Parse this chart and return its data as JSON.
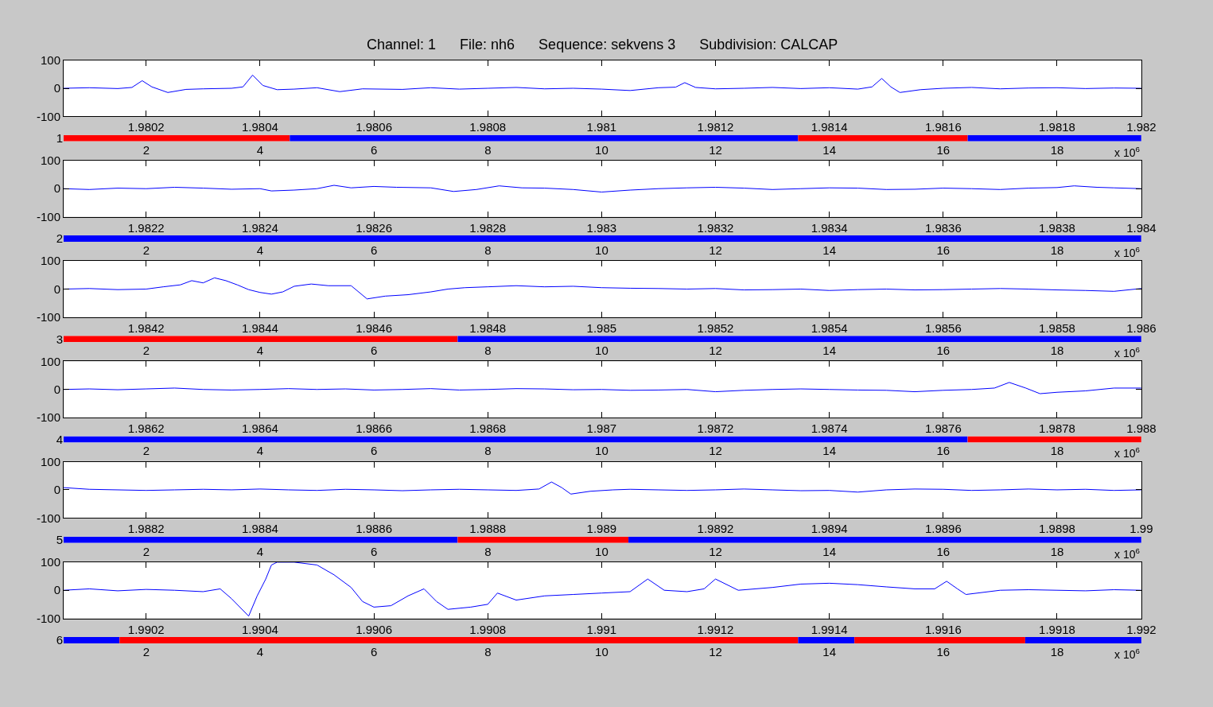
{
  "chart_data": [
    {
      "type": "line",
      "title": "Channel: 1      File: nh6      Sequence: sekvens 3      Subdivision: CALCAP",
      "xlim": [
        1.980055,
        1.981948
      ],
      "xticks": [
        1.9802,
        1.9804,
        1.9806,
        1.9808,
        1.981,
        1.9812,
        1.9814,
        1.9816,
        1.9818,
        {
          "value": 1.981948,
          "label": "1.982"
        }
      ],
      "ylim": [
        -100,
        100
      ],
      "yticks": [
        -100,
        0,
        100
      ],
      "grid": false,
      "series": [
        {
          "color": "#0000ff",
          "x": [
            1.980055,
            1.9801,
            1.98015,
            1.980175,
            1.980193,
            1.98021,
            1.980238,
            1.98027,
            1.9803,
            1.98035,
            1.98037,
            1.980387,
            1.980405,
            1.98043,
            1.98046,
            1.9805,
            1.98054,
            1.98058,
            1.98065,
            1.9807,
            1.98075,
            1.9808,
            1.98085,
            1.9809,
            1.98095,
            1.981,
            1.98105,
            1.9811,
            1.98113,
            1.981146,
            1.981165,
            1.9812,
            1.98125,
            1.9813,
            1.98135,
            1.9814,
            1.98145,
            1.981475,
            1.981492,
            1.981508,
            1.981524,
            1.98156,
            1.9816,
            1.98165,
            1.9817,
            1.98175,
            1.9818,
            1.98185,
            1.9819,
            1.981948
          ],
          "values": [
            0,
            2,
            -1,
            3,
            27,
            5,
            -15,
            -4,
            -2,
            0,
            5,
            47,
            10,
            -5,
            -3,
            2,
            -12,
            -2,
            -4,
            2,
            -3,
            0,
            3,
            -2,
            0,
            -3,
            -8,
            2,
            4,
            20,
            3,
            -2,
            0,
            3,
            -1,
            2,
            -3,
            5,
            35,
            5,
            -15,
            -5,
            0,
            3,
            -2,
            1,
            2,
            -1,
            1,
            0
          ]
        }
      ]
    },
    {
      "type": "bar",
      "orientation": "horizontal",
      "categories": [
        "1"
      ],
      "xlim": [
        0.548,
        19.48
      ],
      "xticks": [
        2,
        4,
        6,
        8,
        10,
        12,
        14,
        16,
        18
      ],
      "annotations": [
        "x 10$^{6}$"
      ],
      "series": [
        {
          "color": "#ff0000",
          "base": [
            0.548
          ],
          "values": [
            3.97
          ]
        },
        {
          "color": "#0000ff",
          "base": [
            4.52
          ],
          "values": [
            8.93
          ]
        },
        {
          "color": "#ff0000",
          "base": [
            13.45
          ],
          "values": [
            2.98
          ]
        },
        {
          "color": "#0000ff",
          "base": [
            16.43
          ],
          "values": [
            3.05
          ]
        }
      ]
    },
    {
      "type": "line",
      "xlim": [
        1.982055,
        1.983948
      ],
      "xticks": [
        1.9822,
        1.9824,
        1.9826,
        1.9828,
        1.983,
        1.9832,
        1.9834,
        1.9836,
        1.9838,
        {
          "value": 1.983948,
          "label": "1.984"
        }
      ],
      "ylim": [
        -100,
        100
      ],
      "yticks": [
        -100,
        0,
        100
      ],
      "grid": false,
      "series": [
        {
          "color": "#0000ff",
          "x": [
            1.982055,
            1.9821,
            1.98215,
            1.9822,
            1.98225,
            1.9823,
            1.98235,
            1.9824,
            1.98242,
            1.98246,
            1.9825,
            1.98253,
            1.98256,
            1.9826,
            1.98264,
            1.9827,
            1.98274,
            1.98278,
            1.98282,
            1.98286,
            1.9829,
            1.98295,
            1.983,
            1.98305,
            1.9831,
            1.98315,
            1.9832,
            1.98325,
            1.9833,
            1.98335,
            1.9834,
            1.98345,
            1.9835,
            1.98355,
            1.9836,
            1.98365,
            1.9837,
            1.98375,
            1.9838,
            1.98383,
            1.98387,
            1.9839,
            1.983948
          ],
          "values": [
            0,
            -3,
            2,
            0,
            5,
            2,
            -2,
            0,
            -8,
            -5,
            0,
            12,
            3,
            8,
            5,
            3,
            -10,
            -3,
            10,
            3,
            2,
            -3,
            -12,
            -5,
            0,
            3,
            5,
            2,
            -3,
            0,
            3,
            2,
            -3,
            -2,
            2,
            0,
            -3,
            2,
            4,
            10,
            5,
            3,
            0
          ]
        }
      ]
    },
    {
      "type": "bar",
      "orientation": "horizontal",
      "categories": [
        "2"
      ],
      "xlim": [
        0.548,
        19.48
      ],
      "xticks": [
        2,
        4,
        6,
        8,
        10,
        12,
        14,
        16,
        18
      ],
      "annotations": [
        "x 10$^{6}$"
      ],
      "series": [
        {
          "color": "#0000ff",
          "base": [
            0.548
          ],
          "values": [
            18.93
          ]
        }
      ]
    },
    {
      "type": "line",
      "xlim": [
        1.984055,
        1.985948
      ],
      "xticks": [
        1.9842,
        1.9844,
        1.9846,
        1.9848,
        1.985,
        1.9852,
        1.9854,
        1.9856,
        1.9858,
        {
          "value": 1.985948,
          "label": "1.986"
        }
      ],
      "ylim": [
        -100,
        100
      ],
      "yticks": [
        -100,
        0,
        100
      ],
      "grid": false,
      "series": [
        {
          "color": "#0000ff",
          "x": [
            1.984055,
            1.9841,
            1.98415,
            1.9842,
            1.98423,
            1.98426,
            1.98428,
            1.9843,
            1.98432,
            1.98434,
            1.98436,
            1.98438,
            1.9844,
            1.98442,
            1.98444,
            1.98446,
            1.98449,
            1.98452,
            1.98456,
            1.984588,
            1.98462,
            1.98466,
            1.9847,
            1.98473,
            1.98476,
            1.9848,
            1.98485,
            1.9849,
            1.98495,
            1.985,
            1.98505,
            1.9851,
            1.98515,
            1.9852,
            1.98525,
            1.9853,
            1.98535,
            1.9854,
            1.98545,
            1.9855,
            1.98555,
            1.9856,
            1.98565,
            1.9857,
            1.98575,
            1.9858,
            1.98585,
            1.9859,
            1.985948
          ],
          "values": [
            0,
            2,
            -2,
            0,
            8,
            15,
            30,
            22,
            40,
            30,
            15,
            -2,
            -12,
            -18,
            -10,
            10,
            18,
            12,
            12,
            -35,
            -25,
            -20,
            -10,
            0,
            5,
            8,
            12,
            8,
            10,
            5,
            3,
            2,
            0,
            2,
            -3,
            -2,
            0,
            -5,
            -2,
            0,
            -3,
            -2,
            0,
            2,
            0,
            -3,
            -5,
            -8,
            2
          ]
        }
      ]
    },
    {
      "type": "bar",
      "orientation": "horizontal",
      "categories": [
        "3"
      ],
      "xlim": [
        0.548,
        19.48
      ],
      "xticks": [
        2,
        4,
        6,
        8,
        10,
        12,
        14,
        16,
        18
      ],
      "annotations": [
        "x 10$^{6}$"
      ],
      "series": [
        {
          "color": "#ff0000",
          "base": [
            0.548
          ],
          "values": [
            6.92
          ]
        },
        {
          "color": "#0000ff",
          "base": [
            7.47
          ],
          "values": [
            12.01
          ]
        }
      ]
    },
    {
      "type": "line",
      "xlim": [
        1.986055,
        1.987948
      ],
      "xticks": [
        1.9862,
        1.9864,
        1.9866,
        1.9868,
        1.987,
        1.9872,
        1.9874,
        1.9876,
        1.9878,
        {
          "value": 1.987948,
          "label": "1.988"
        }
      ],
      "ylim": [
        -100,
        100
      ],
      "yticks": [
        -100,
        0,
        100
      ],
      "grid": false,
      "series": [
        {
          "color": "#0000ff",
          "x": [
            1.986055,
            1.9861,
            1.98615,
            1.9862,
            1.98625,
            1.9863,
            1.98635,
            1.9864,
            1.98645,
            1.9865,
            1.98655,
            1.9866,
            1.98665,
            1.9867,
            1.98675,
            1.9868,
            1.98685,
            1.9869,
            1.98695,
            1.987,
            1.98705,
            1.9871,
            1.98715,
            1.9872,
            1.98725,
            1.9873,
            1.98735,
            1.9874,
            1.98745,
            1.9875,
            1.98755,
            1.9876,
            1.98765,
            1.98769,
            1.987716,
            1.987745,
            1.98777,
            1.9878,
            1.98785,
            1.9879,
            1.987948
          ],
          "values": [
            0,
            2,
            -1,
            2,
            5,
            0,
            -2,
            0,
            3,
            0,
            2,
            -2,
            0,
            3,
            -2,
            0,
            3,
            2,
            -1,
            0,
            -3,
            -2,
            0,
            -8,
            -3,
            0,
            2,
            0,
            -2,
            -3,
            -8,
            -3,
            0,
            5,
            25,
            5,
            -15,
            -10,
            -5,
            5,
            5
          ]
        }
      ]
    },
    {
      "type": "bar",
      "orientation": "horizontal",
      "categories": [
        "4"
      ],
      "xlim": [
        0.548,
        19.48
      ],
      "xticks": [
        2,
        4,
        6,
        8,
        10,
        12,
        14,
        16,
        18
      ],
      "annotations": [
        "x 10$^{6}$"
      ],
      "series": [
        {
          "color": "#0000ff",
          "base": [
            0.548
          ],
          "values": [
            15.88
          ]
        },
        {
          "color": "#ff0000",
          "base": [
            16.43
          ],
          "values": [
            3.05
          ]
        }
      ]
    },
    {
      "type": "line",
      "xlim": [
        1.988055,
        1.989948
      ],
      "xticks": [
        1.9882,
        1.9884,
        1.9886,
        1.9888,
        1.989,
        1.9892,
        1.9894,
        1.9896,
        1.9898,
        {
          "value": 1.989948,
          "label": "1.99"
        }
      ],
      "ylim": [
        -100,
        100
      ],
      "yticks": [
        -100,
        0,
        100
      ],
      "grid": false,
      "series": [
        {
          "color": "#0000ff",
          "x": [
            1.988055,
            1.9881,
            1.98815,
            1.9882,
            1.98825,
            1.9883,
            1.98835,
            1.9884,
            1.98845,
            1.9885,
            1.98855,
            1.9886,
            1.98865,
            1.9887,
            1.98875,
            1.9888,
            1.98885,
            1.98889,
            1.988912,
            1.98893,
            1.988946,
            1.98898,
            1.98902,
            1.98905,
            1.9891,
            1.98915,
            1.9892,
            1.98925,
            1.9893,
            1.98935,
            1.9894,
            1.98945,
            1.9895,
            1.98955,
            1.9896,
            1.98965,
            1.9897,
            1.98975,
            1.9898,
            1.98985,
            1.9899,
            1.989948
          ],
          "values": [
            8,
            2,
            0,
            -2,
            0,
            2,
            0,
            3,
            0,
            -2,
            2,
            0,
            -3,
            0,
            2,
            0,
            -2,
            3,
            28,
            8,
            -15,
            -5,
            0,
            2,
            0,
            -2,
            0,
            3,
            0,
            -3,
            -2,
            -8,
            0,
            3,
            2,
            -2,
            0,
            3,
            0,
            2,
            -2,
            0
          ]
        }
      ]
    },
    {
      "type": "bar",
      "orientation": "horizontal",
      "categories": [
        "5"
      ],
      "xlim": [
        0.548,
        19.48
      ],
      "xticks": [
        2,
        4,
        6,
        8,
        10,
        12,
        14,
        16,
        18
      ],
      "annotations": [
        "x 10$^{6}$"
      ],
      "series": [
        {
          "color": "#0000ff",
          "base": [
            0.548
          ],
          "values": [
            6.92
          ]
        },
        {
          "color": "#ff0000",
          "base": [
            7.47
          ],
          "values": [
            3.0
          ]
        },
        {
          "color": "#0000ff",
          "base": [
            10.47
          ],
          "values": [
            9.01
          ]
        }
      ]
    },
    {
      "type": "line",
      "xlim": [
        1.990055,
        1.991948
      ],
      "xticks": [
        1.9902,
        1.9904,
        1.9906,
        1.9908,
        1.991,
        1.9912,
        1.9914,
        1.9916,
        1.9918,
        {
          "value": 1.991948,
          "label": "1.992"
        }
      ],
      "ylim": [
        -100,
        100
      ],
      "yticks": [
        -100,
        0,
        100
      ],
      "grid": false,
      "series": [
        {
          "color": "#0000ff",
          "x": [
            1.990055,
            1.9901,
            1.99015,
            1.9902,
            1.99025,
            1.9903,
            1.99033,
            1.99035,
            1.99038,
            1.990395,
            1.99041,
            1.99042,
            1.99043,
            1.99046,
            1.9905,
            1.99053,
            1.99056,
            1.99058,
            1.9906,
            1.99063,
            1.99066,
            1.990688,
            1.99071,
            1.99073,
            1.99077,
            1.9908,
            1.990817,
            1.99085,
            1.9909,
            1.99095,
            1.991,
            1.99105,
            1.991081,
            1.99111,
            1.99115,
            1.99118,
            1.9912,
            1.99124,
            1.9913,
            1.99135,
            1.9914,
            1.99145,
            1.9915,
            1.99155,
            1.991585,
            1.991606,
            1.991625,
            1.99164,
            1.9917,
            1.99175,
            1.9918,
            1.99185,
            1.9919,
            1.991948
          ],
          "values": [
            0,
            5,
            -2,
            3,
            0,
            -5,
            5,
            -30,
            -92,
            -20,
            40,
            90,
            100,
            100,
            90,
            55,
            10,
            -40,
            -60,
            -55,
            -20,
            5,
            -40,
            -68,
            -60,
            -50,
            -10,
            -35,
            -20,
            -15,
            -10,
            -5,
            40,
            0,
            -5,
            5,
            40,
            0,
            10,
            22,
            25,
            20,
            12,
            5,
            5,
            32,
            5,
            -15,
            0,
            2,
            0,
            -2,
            2,
            0
          ]
        }
      ]
    },
    {
      "type": "bar",
      "orientation": "horizontal",
      "categories": [
        "6"
      ],
      "xlim": [
        0.548,
        19.48
      ],
      "xticks": [
        2,
        4,
        6,
        8,
        10,
        12,
        14,
        16,
        18
      ],
      "annotations": [
        "x 10$^{6}$"
      ],
      "series": [
        {
          "color": "#0000ff",
          "base": [
            0.548
          ],
          "values": [
            0.98
          ]
        },
        {
          "color": "#ff0000",
          "base": [
            1.53
          ],
          "values": [
            11.92
          ]
        },
        {
          "color": "#0000ff",
          "base": [
            13.45
          ],
          "values": [
            0.99
          ]
        },
        {
          "color": "#ff0000",
          "base": [
            14.44
          ],
          "values": [
            3.0
          ]
        },
        {
          "color": "#0000ff",
          "base": [
            17.44
          ],
          "values": [
            2.04
          ]
        }
      ]
    }
  ]
}
